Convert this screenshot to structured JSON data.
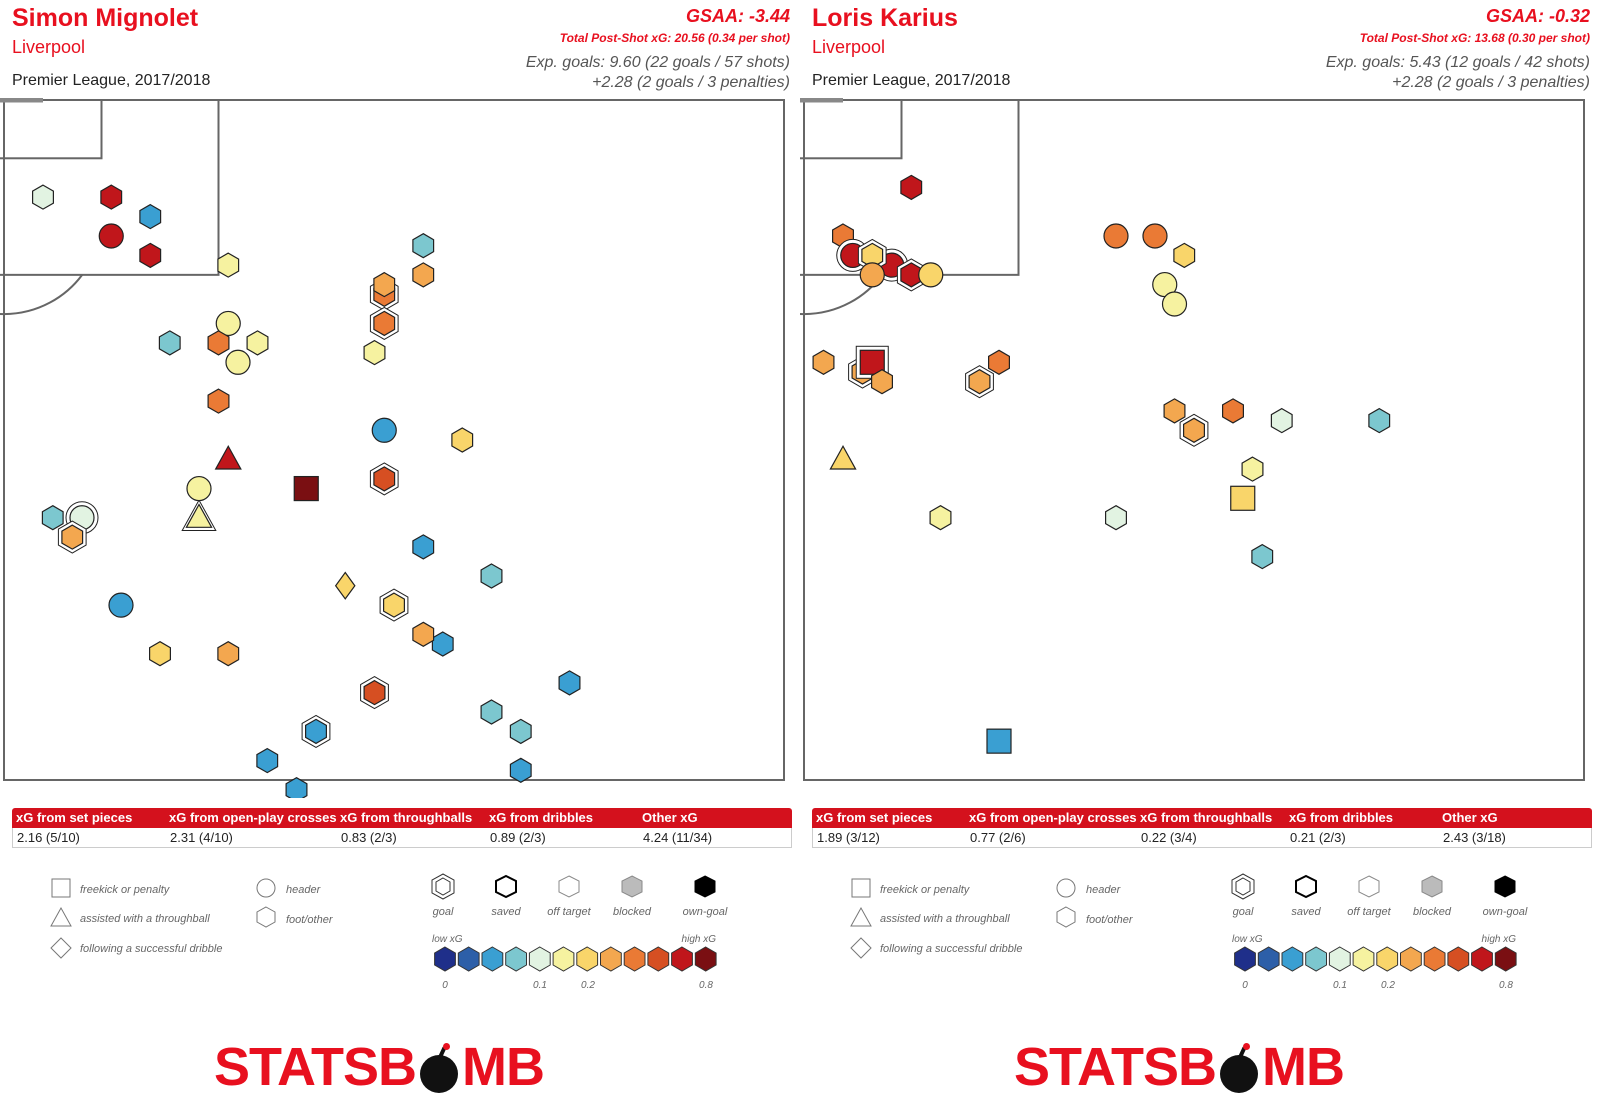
{
  "legend": {
    "shapes": [
      "freekick or penalty",
      "assisted with a throughball",
      "following a successful dribble",
      "header",
      "foot/other"
    ],
    "outcomes": [
      "goal",
      "saved",
      "off target",
      "blocked",
      "own-goal"
    ],
    "scale_low": "low xG",
    "scale_high": "high xG",
    "scale_ticks": [
      "0",
      "0.1",
      "0.2",
      "0.8"
    ],
    "scale_colors": [
      "#1f2f8a",
      "#2d5fa8",
      "#3a9fd2",
      "#7cc7cf",
      "#e2f3e2",
      "#f6f2a0",
      "#f9d56a",
      "#f3a74f",
      "#ea7a35",
      "#d64f22",
      "#c0161b",
      "#7a0f12"
    ]
  },
  "brand": {
    "logo_left": "STATSB",
    "logo_right": "MB"
  },
  "chart_data": [
    {
      "type": "scatter",
      "title": "Simon Mignolet",
      "team": "Liverpool",
      "competition": "Premier League, 2017/2018",
      "gsaa": "GSAA: -3.44",
      "psxg": "Total Post-Shot xG: 20.56 (0.34 per shot)",
      "expg_1": "Exp. goals: 9.60 (22 goals / 57 shots)",
      "expg_2": "+2.28 (2 goals / 3 penalties)",
      "table_headers": [
        "xG from set pieces",
        "xG from open-play crosses",
        "xG from throughballs",
        "xG from dribbles",
        "Other xG"
      ],
      "table_values": [
        "2.16 (5/10)",
        "2.31 (4/10)",
        "0.83 (2/3)",
        "0.89 (2/3)",
        "4.24 (11/34)"
      ],
      "shots": [
        [
          55,
          108,
          "hex",
          0,
          0.05
        ],
        [
          45,
          77,
          "hex",
          0,
          0.07
        ],
        [
          48,
          77,
          "circle",
          1,
          0.12
        ],
        [
          47,
          75,
          "hex",
          1,
          0.28
        ],
        [
          38,
          73,
          "hex",
          1,
          0.32
        ],
        [
          30,
          69,
          "hex",
          1,
          0.62
        ],
        [
          32,
          78,
          "hex",
          1,
          0.75
        ],
        [
          25,
          77,
          "circle",
          1,
          0.78
        ],
        [
          25,
          80,
          "circle",
          1,
          0.75
        ],
        [
          30,
          72,
          "circle",
          1,
          0.68
        ],
        [
          33,
          69,
          "circle",
          1,
          0.72
        ],
        [
          33,
          74,
          "circle",
          1,
          0.58
        ],
        [
          36,
          71,
          "hex",
          0,
          0.45
        ],
        [
          37,
          67,
          "hex",
          1,
          0.32
        ],
        [
          37,
          69,
          "diamond",
          0,
          0.26
        ],
        [
          57,
          95,
          "hex",
          0,
          0.09
        ],
        [
          44,
          110,
          "hex",
          0,
          0.1
        ],
        [
          51,
          106,
          "circle",
          0,
          0.65
        ],
        [
          51,
          110,
          "hex",
          0,
          0.6
        ],
        [
          55,
          104,
          "hex",
          0,
          0.72
        ],
        [
          60,
          77,
          "triangle",
          1,
          0.18
        ],
        [
          60,
          80,
          "circle",
          0,
          0.15
        ],
        [
          63,
          97,
          "circle",
          0,
          0.17
        ],
        [
          62,
          95,
          "hex",
          0,
          0.36
        ],
        [
          64,
          93,
          "circle",
          0,
          0.18
        ],
        [
          62,
          89,
          "hex",
          0,
          0.39
        ],
        [
          63,
          103,
          "hex",
          0,
          0.16
        ],
        [
          66,
          95,
          "hex",
          0,
          0.18
        ],
        [
          63,
          83,
          "triangle",
          0,
          0.68
        ],
        [
          71,
          80,
          "square",
          0,
          0.76
        ],
        [
          83,
          105,
          "hex",
          0,
          0.09
        ],
        [
          79,
          100,
          "hex",
          1,
          0.38
        ],
        [
          79,
          101,
          "hex",
          0,
          0.33
        ],
        [
          79,
          97,
          "hex",
          1,
          0.35
        ],
        [
          78,
          94,
          "hex",
          0,
          0.16
        ],
        [
          83,
          102,
          "hex",
          0,
          0.34
        ],
        [
          87,
          85,
          "hex",
          0,
          0.22
        ],
        [
          79,
          81,
          "hex",
          1,
          0.46
        ],
        [
          79,
          86,
          "circle",
          0,
          0.06
        ],
        [
          75,
          70,
          "diamond",
          0,
          0.22
        ],
        [
          63,
          63,
          "hex",
          0,
          0.33
        ],
        [
          56,
          63,
          "hex",
          0,
          0.22
        ],
        [
          52,
          68,
          "circle",
          0,
          0.04
        ],
        [
          80,
          68,
          "hex",
          1,
          0.2
        ],
        [
          73,
          40,
          "hex",
          0,
          0.03
        ],
        [
          74,
          46,
          "hex",
          0,
          0.06
        ],
        [
          93,
          51,
          "hex",
          0,
          0.05
        ],
        [
          93,
          55,
          "hex",
          0,
          0.09
        ],
        [
          98,
          60,
          "hex",
          0,
          0.05
        ],
        [
          90,
          57,
          "hex",
          0,
          0.07
        ],
        [
          85,
          64,
          "hex",
          0,
          0.06
        ],
        [
          78,
          59,
          "hex",
          1,
          0.48
        ],
        [
          83,
          65,
          "hex",
          0,
          0.3
        ],
        [
          90,
          71,
          "hex",
          0,
          0.07
        ],
        [
          83,
          74,
          "hex",
          0,
          0.06
        ],
        [
          70,
          49,
          "hex",
          0,
          0.04
        ],
        [
          67,
          52,
          "hex",
          0,
          0.04
        ],
        [
          72,
          55,
          "hex",
          1,
          0.05
        ],
        [
          55,
          38,
          "hex",
          0,
          0.03
        ]
      ]
    },
    {
      "type": "scatter",
      "title": "Loris Karius",
      "team": "Liverpool",
      "competition": "Premier League, 2017/2018",
      "gsaa": "GSAA: -0.32",
      "psxg": "Total Post-Shot xG: 13.68 (0.30 per shot)",
      "expg_1": "Exp. goals: 5.43 (12 goals / 42 shots)",
      "expg_2": "+2.28 (2 goals / 3 penalties)",
      "table_headers": [
        "xG from set pieces",
        "xG from open-play crosses",
        "xG from throughballs",
        "xG from dribbles",
        "Other xG"
      ],
      "table_values": [
        "1.89 (3/12)",
        "0.77 (2/6)",
        "0.22 (3/4)",
        "0.21 (2/3)",
        "2.43 (3/18)"
      ],
      "shots": [
        [
          20,
          113,
          "diamond",
          0,
          0.05
        ],
        [
          24,
          115,
          "hex",
          0,
          0.06
        ],
        [
          51,
          111,
          "hex",
          0,
          0.72
        ],
        [
          44,
          106,
          "hex",
          0,
          0.38
        ],
        [
          45,
          104,
          "circle",
          1,
          0.62
        ],
        [
          49,
          103,
          "circle",
          1,
          0.68
        ],
        [
          47,
          104,
          "hex",
          1,
          0.22
        ],
        [
          47,
          102,
          "circle",
          0,
          0.34
        ],
        [
          51,
          102,
          "hex",
          1,
          0.7
        ],
        [
          53,
          102,
          "circle",
          0,
          0.2
        ],
        [
          72,
          106,
          "circle",
          0,
          0.35
        ],
        [
          76,
          106,
          "circle",
          0,
          0.38
        ],
        [
          79,
          104,
          "hex",
          0,
          0.2
        ],
        [
          77,
          101,
          "circle",
          0,
          0.17
        ],
        [
          78,
          99,
          "circle",
          0,
          0.16
        ],
        [
          23,
          96,
          "diamond",
          1,
          0.18
        ],
        [
          36,
          93,
          "hex",
          0,
          0.36
        ],
        [
          46,
          92,
          "hex",
          1,
          0.3
        ],
        [
          47,
          93,
          "square",
          1,
          0.7
        ],
        [
          48,
          91,
          "hex",
          0,
          0.3
        ],
        [
          58,
          91,
          "hex",
          1,
          0.34
        ],
        [
          60,
          93,
          "hex",
          0,
          0.4
        ],
        [
          26,
          91,
          "triangle",
          1,
          0.12
        ],
        [
          33,
          91,
          "triangle",
          1,
          0.28
        ],
        [
          42,
          93,
          "hex",
          0,
          0.33
        ],
        [
          35,
          92,
          "circle",
          0,
          0.16
        ],
        [
          32,
          92,
          "hex",
          0,
          0.28
        ],
        [
          15,
          87,
          "hex",
          0,
          0.15
        ],
        [
          78,
          88,
          "hex",
          0,
          0.3
        ],
        [
          84,
          88,
          "hex",
          0,
          0.44
        ],
        [
          80,
          86,
          "hex",
          1,
          0.28
        ],
        [
          89,
          87,
          "hex",
          0,
          0.11
        ],
        [
          99,
          87,
          "hex",
          0,
          0.07
        ],
        [
          86,
          82,
          "hex",
          0,
          0.17
        ],
        [
          44,
          83,
          "triangle",
          0,
          0.26
        ],
        [
          11,
          78,
          "hex",
          0,
          0.06
        ],
        [
          33,
          77,
          "hex",
          0,
          0.17
        ],
        [
          32,
          75,
          "hex",
          0,
          0.11
        ],
        [
          54,
          77,
          "hex",
          0,
          0.16
        ],
        [
          72,
          77,
          "hex",
          0,
          0.11
        ],
        [
          85,
          79,
          "square",
          0,
          0.2
        ],
        [
          87,
          73,
          "hex",
          0,
          0.07
        ],
        [
          6,
          72,
          "hex",
          0,
          0.06
        ],
        [
          33,
          69,
          "triangle",
          1,
          0.16
        ],
        [
          60,
          54,
          "square",
          0,
          0.06
        ]
      ]
    }
  ]
}
